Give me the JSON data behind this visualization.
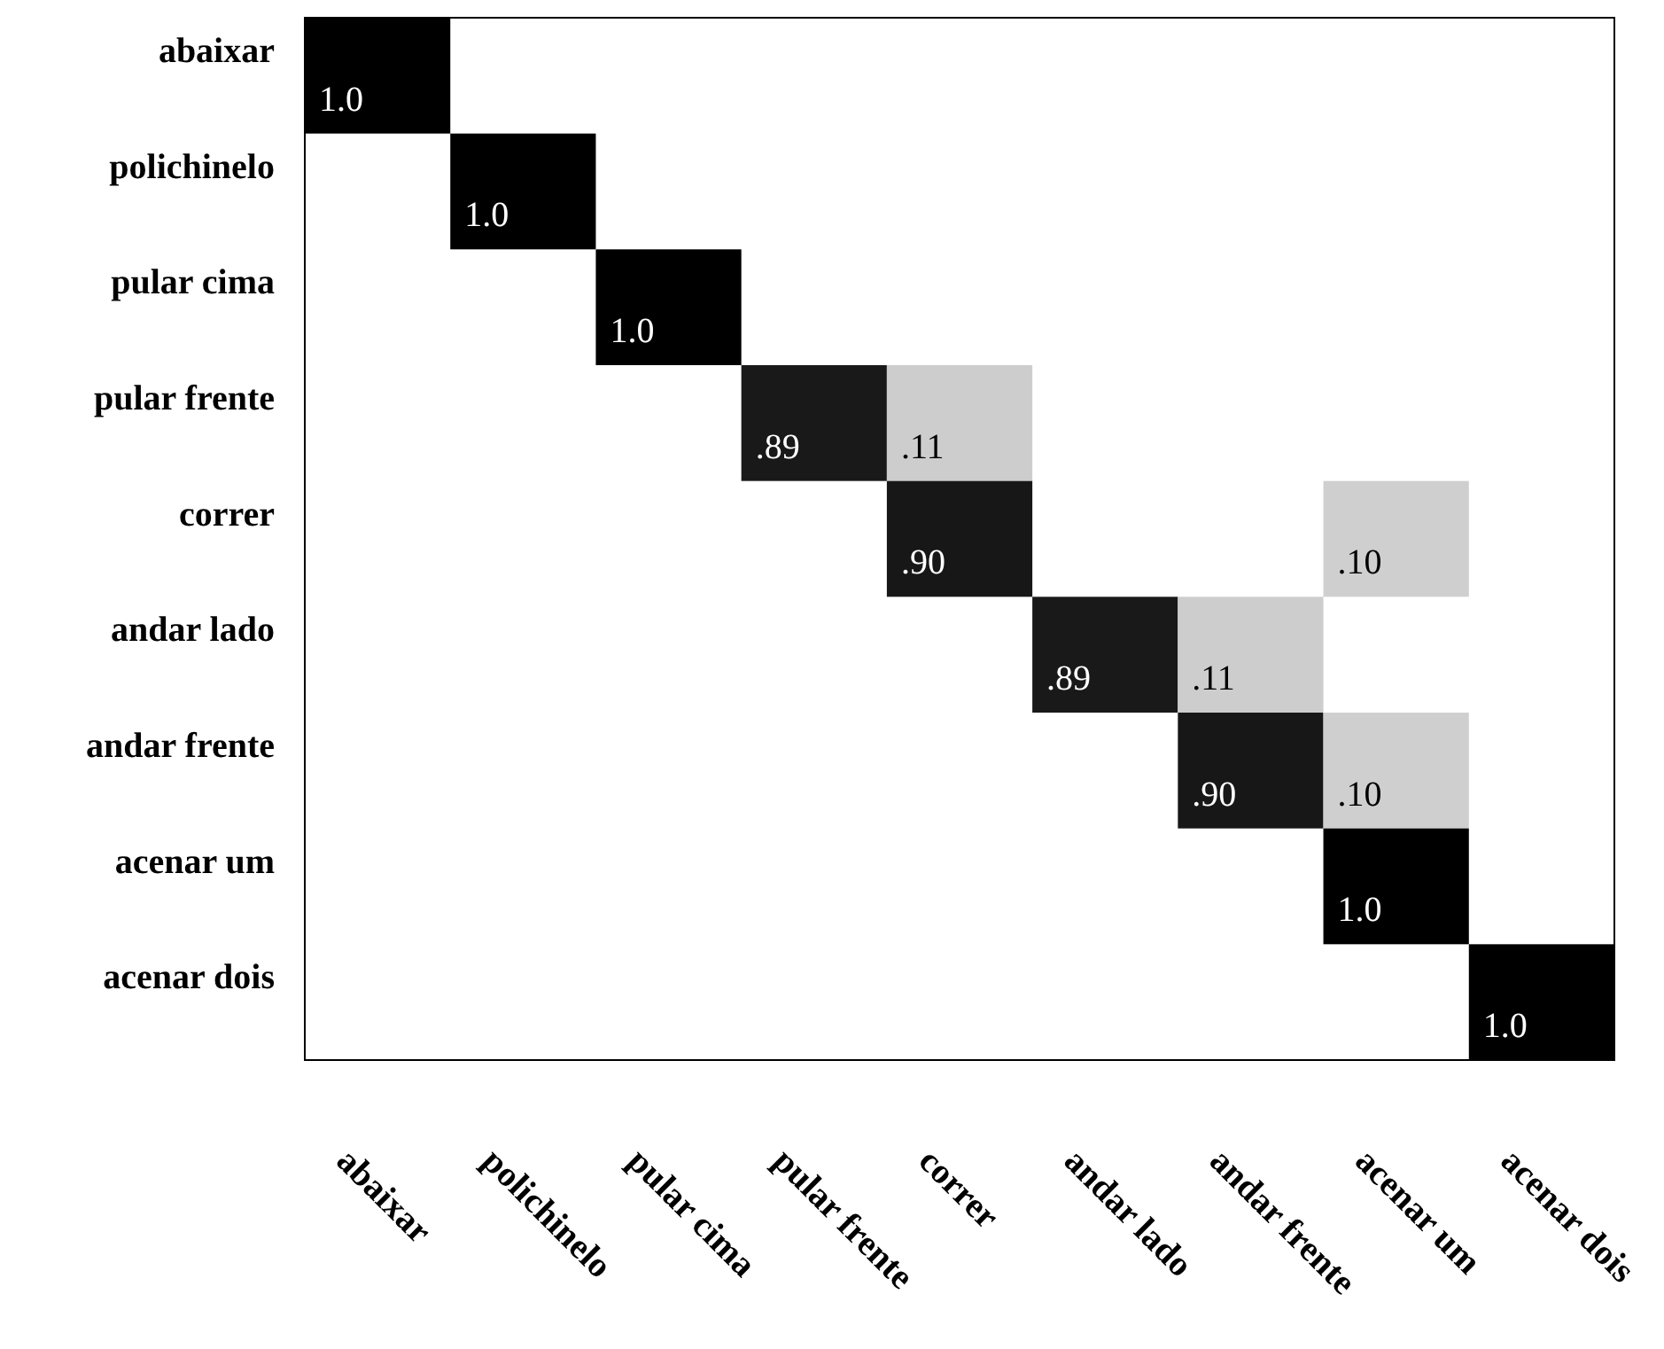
{
  "chart_data": {
    "type": "heatmap",
    "categories": [
      "abaixar",
      "polichinelo",
      "pular cima",
      "pular frente",
      "correr",
      "andar lado",
      "andar frente",
      "acenar um",
      "acenar dois"
    ],
    "y_categories": [
      "abaixar",
      "polichinelo",
      "pular cima",
      "pular frente",
      "correr",
      "andar lado",
      "andar frente",
      "acenar um",
      "acenar dois"
    ],
    "cells": [
      [
        1.0,
        null,
        null,
        null,
        null,
        null,
        null,
        null,
        null
      ],
      [
        null,
        1.0,
        null,
        null,
        null,
        null,
        null,
        null,
        null
      ],
      [
        null,
        null,
        1.0,
        null,
        null,
        null,
        null,
        null,
        null
      ],
      [
        null,
        null,
        null,
        0.89,
        0.11,
        null,
        null,
        null,
        null
      ],
      [
        null,
        null,
        null,
        null,
        0.9,
        null,
        null,
        0.1,
        null
      ],
      [
        null,
        null,
        null,
        null,
        null,
        0.89,
        0.11,
        null,
        null
      ],
      [
        null,
        null,
        null,
        null,
        null,
        null,
        0.9,
        0.1,
        null
      ],
      [
        null,
        null,
        null,
        null,
        null,
        null,
        null,
        1.0,
        null
      ],
      [
        null,
        null,
        null,
        null,
        null,
        null,
        null,
        null,
        1.0
      ]
    ],
    "cell_labels": [
      [
        "1.0",
        null,
        null,
        null,
        null,
        null,
        null,
        null,
        null
      ],
      [
        null,
        "1.0",
        null,
        null,
        null,
        null,
        null,
        null,
        null
      ],
      [
        null,
        null,
        "1.0",
        null,
        null,
        null,
        null,
        null,
        null
      ],
      [
        null,
        null,
        null,
        ".89",
        ".11",
        null,
        null,
        null,
        null
      ],
      [
        null,
        null,
        null,
        null,
        ".90",
        null,
        null,
        ".10",
        null
      ],
      [
        null,
        null,
        null,
        null,
        null,
        ".89",
        ".11",
        null,
        null
      ],
      [
        null,
        null,
        null,
        null,
        null,
        null,
        ".90",
        ".10",
        null
      ],
      [
        null,
        null,
        null,
        null,
        null,
        null,
        null,
        "1.0",
        null
      ],
      [
        null,
        null,
        null,
        null,
        null,
        null,
        null,
        null,
        "1.0"
      ]
    ]
  }
}
